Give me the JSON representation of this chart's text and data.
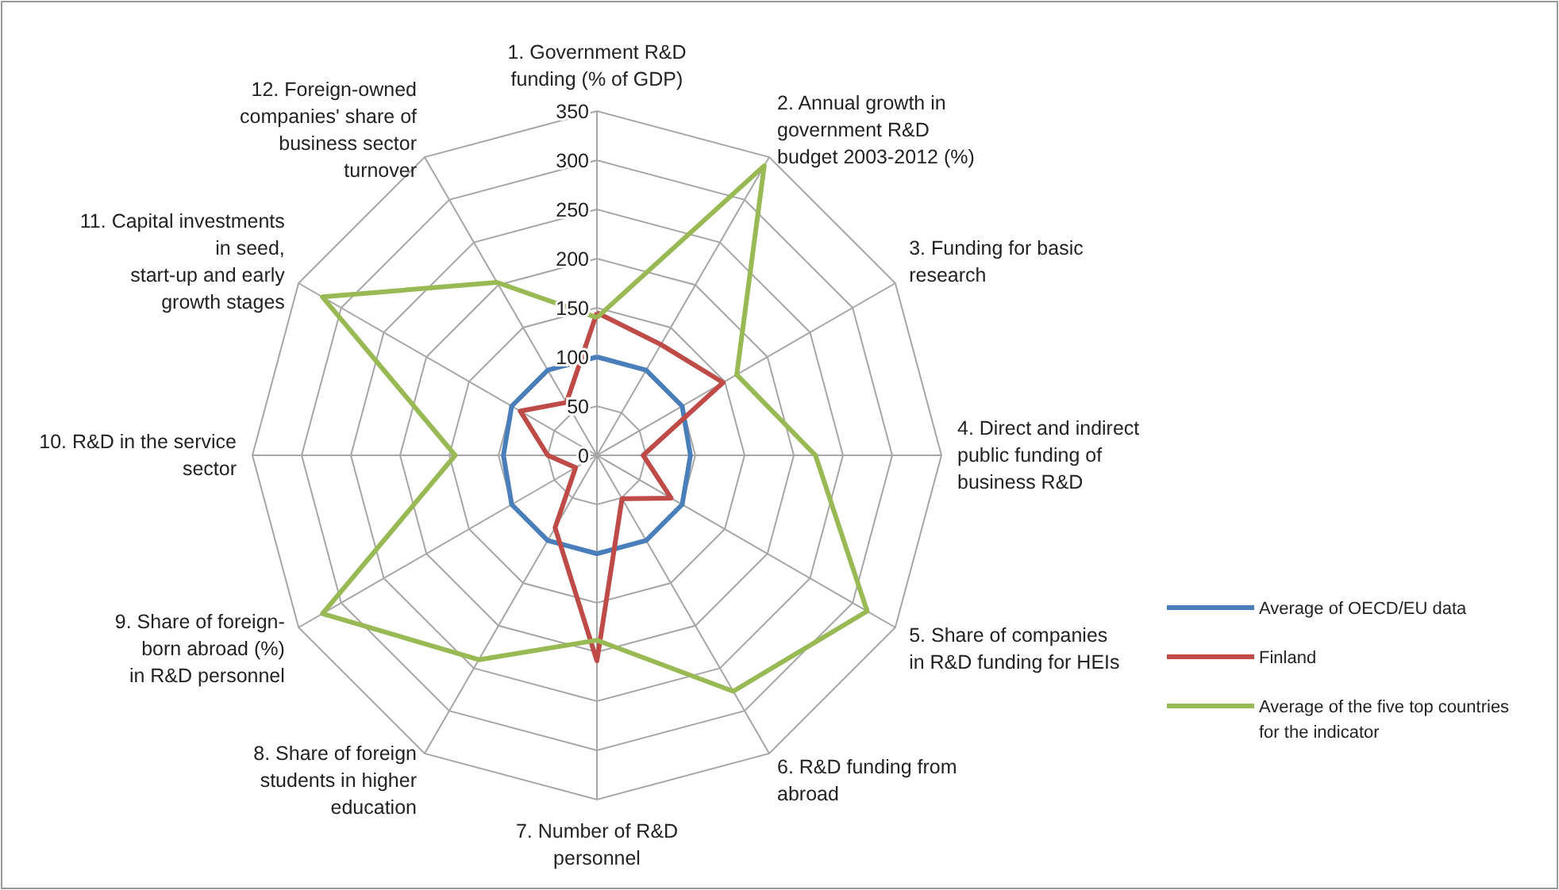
{
  "chart_data": {
    "type": "radar",
    "categories": [
      "1. Government R&D\nfunding (% of GDP)",
      "2. Annual growth in\ngovernment R&D\nbudget  2003-2012 (%)",
      "3. Funding for basic\nresearch",
      "4. Direct and indirect\npublic funding of\nbusiness R&D",
      "5. Share of companies\nin R&D funding for HEIs",
      "6. R&D funding from\nabroad",
      "7. Number of R&D\npersonnel",
      "8. Share of foreign\nstudents in higher\neducation",
      "9. Share of foreign-\nborn abroad (%)\nin R&D personnel",
      "10. R&D in the service\nsector",
      "11. Capital investments\nin seed,\nstart-up and early\ngrowth stages",
      "12. Foreign-owned\ncompanies' share of\nbusiness sector\nturnover"
    ],
    "series": [
      {
        "name": "Average of OECD/EU data",
        "color": "#4a7ebb",
        "values": [
          100,
          100,
          100,
          95,
          100,
          100,
          100,
          100,
          100,
          95,
          100,
          100
        ]
      },
      {
        "name": "Finland",
        "color": "#be4b48",
        "values": [
          145,
          130,
          148,
          47,
          87,
          51,
          209,
          85,
          25,
          50,
          90,
          62
        ]
      },
      {
        "name": "Average of the five top countries\nfor the indicator",
        "color": "#98b954",
        "values": [
          140,
          340,
          164,
          222,
          317,
          277,
          188,
          240,
          322,
          144,
          322,
          203
        ]
      }
    ],
    "ylim": [
      0,
      350
    ],
    "yticks": [
      0,
      50,
      100,
      150,
      200,
      250,
      300,
      350
    ],
    "grid": true,
    "legend": "bottom right",
    "line_style": "solid",
    "marker": "none"
  }
}
